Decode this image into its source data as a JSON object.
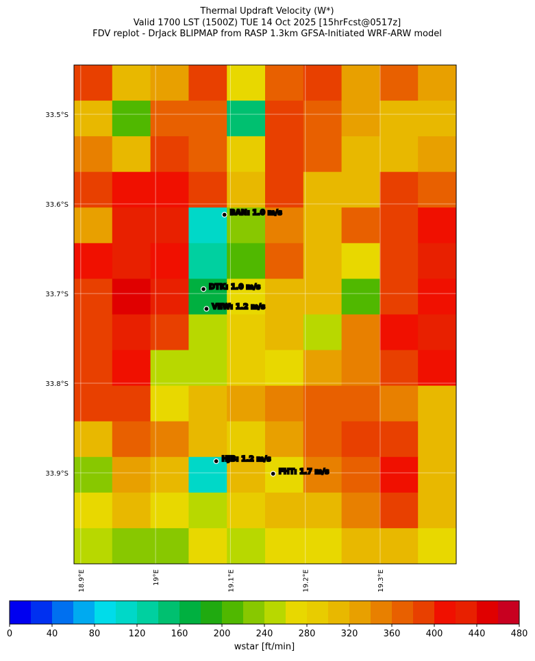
{
  "map": {
    "type": "heatmap",
    "title": [
      "Thermal Updraft Velocity (W*)",
      "Valid 1700 LST (1500Z) TUE 14 Oct 2025 [15hrFcst@0517z]",
      "FDV replot - DrJack BLIPMAP from RASP 1.3km GFSA-Initiated WRF-ARW model"
    ],
    "xlim": [
      18.891,
      19.4016
    ],
    "ylim": [
      -34.0015,
      -33.445
    ],
    "xticks": [
      {
        "value": 18.9,
        "label": "18.9°E"
      },
      {
        "value": 19.0,
        "label": "19°E"
      },
      {
        "value": 19.1,
        "label": "19.1°E"
      },
      {
        "value": 19.2,
        "label": "19.2°E"
      },
      {
        "value": 19.3,
        "label": "19.3°E"
      }
    ],
    "yticks": [
      {
        "value": -33.5,
        "label": "33.5°S"
      },
      {
        "value": -33.6,
        "label": "33.6°S"
      },
      {
        "value": -33.7,
        "label": "33.7°S"
      },
      {
        "value": -33.8,
        "label": "33.8°S"
      },
      {
        "value": -33.9,
        "label": "33.9°S"
      }
    ],
    "grid": true,
    "values": [
      [
        380,
        300,
        320,
        380,
        260,
        360,
        380,
        320,
        360,
        320
      ],
      [
        300,
        200,
        360,
        360,
        150,
        380,
        360,
        320,
        300,
        300
      ],
      [
        340,
        300,
        380,
        360,
        280,
        380,
        360,
        300,
        300,
        320
      ],
      [
        380,
        400,
        400,
        380,
        300,
        380,
        300,
        300,
        380,
        360
      ],
      [
        320,
        420,
        420,
        100,
        220,
        340,
        300,
        360,
        380,
        400
      ],
      [
        400,
        420,
        400,
        120,
        200,
        360,
        300,
        260,
        380,
        420
      ],
      [
        380,
        440,
        420,
        160,
        260,
        300,
        300,
        200,
        380,
        400
      ],
      [
        380,
        420,
        380,
        240,
        280,
        300,
        240,
        340,
        400,
        420
      ],
      [
        380,
        400,
        240,
        240,
        280,
        260,
        320,
        340,
        380,
        400
      ],
      [
        380,
        380,
        260,
        300,
        320,
        340,
        360,
        360,
        340,
        300
      ],
      [
        300,
        360,
        340,
        300,
        280,
        320,
        360,
        380,
        380,
        300
      ],
      [
        220,
        320,
        300,
        100,
        300,
        260,
        340,
        360,
        400,
        300
      ],
      [
        260,
        300,
        260,
        240,
        280,
        300,
        300,
        340,
        380,
        300
      ],
      [
        240,
        220,
        220,
        260,
        240,
        260,
        260,
        300,
        300,
        260
      ]
    ],
    "stations": [
      {
        "label": "BAN: 1.0 m/s",
        "lon": 19.092,
        "lat": -33.612
      },
      {
        "label": "DTK: 1.0 m/s",
        "lon": 19.064,
        "lat": -33.695
      },
      {
        "label": "VEW: 1.2 m/s",
        "lon": 19.068,
        "lat": -33.717
      },
      {
        "label": "HJB: 1.2 m/s",
        "lon": 19.081,
        "lat": -33.887
      },
      {
        "label": "FHT: 1.7 m/s",
        "lon": 19.157,
        "lat": -33.901
      }
    ]
  },
  "colorbar": {
    "label": "wstar [ft/min]",
    "lim": [
      0,
      480
    ],
    "ticks": [
      0,
      40,
      80,
      120,
      160,
      200,
      240,
      280,
      320,
      360,
      400,
      440,
      480
    ],
    "colors": [
      "#0000f0",
      "#0030f0",
      "#0070f0",
      "#00aaf0",
      "#00dcea",
      "#00d8c8",
      "#00d0a0",
      "#00c070",
      "#00b040",
      "#20aa10",
      "#50b800",
      "#88c800",
      "#b8d800",
      "#e8d800",
      "#e8cc00",
      "#e8b800",
      "#e8a000",
      "#e88000",
      "#e86000",
      "#e84000",
      "#f01000",
      "#e82000",
      "#e00000",
      "#c80020"
    ]
  }
}
